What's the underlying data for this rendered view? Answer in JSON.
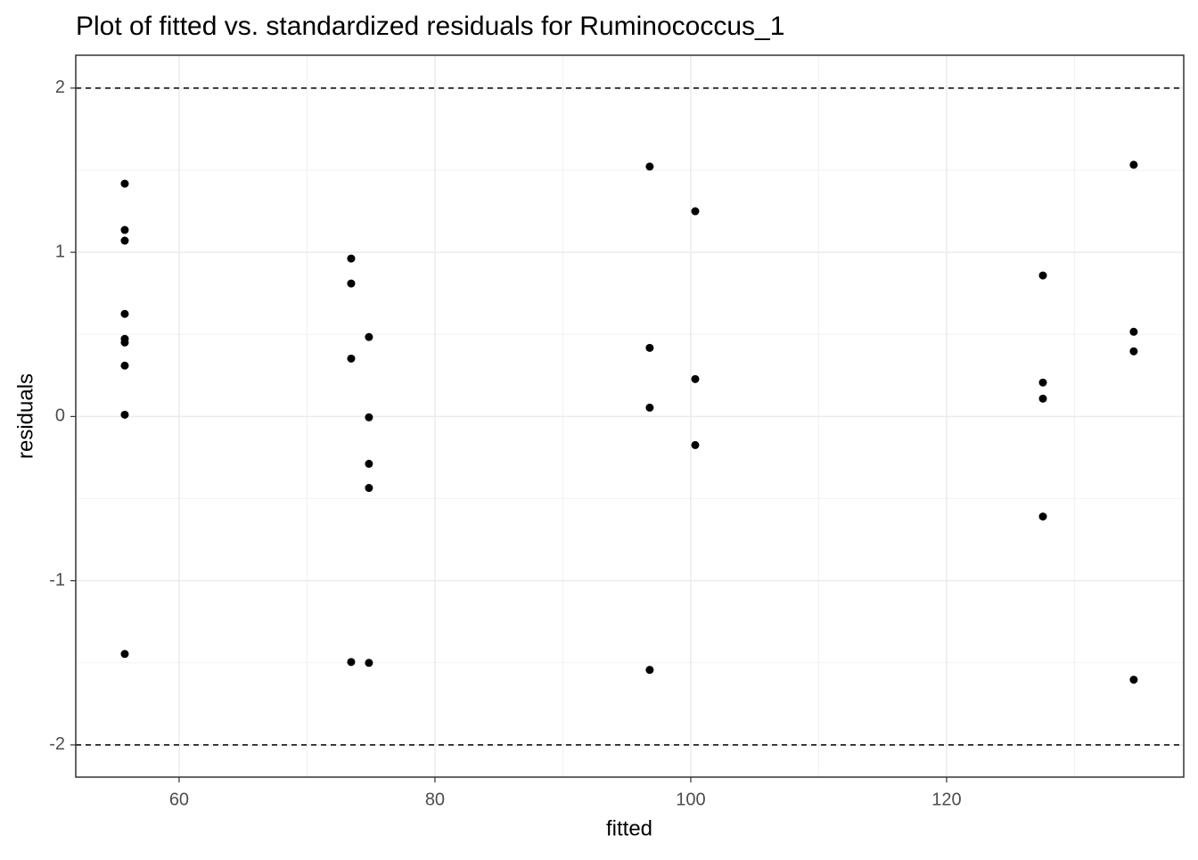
{
  "chart_data": {
    "type": "scatter",
    "title": "Plot of fitted vs. standardized residuals for Ruminococcus_1",
    "x_label": "fitted",
    "y_label": "residuals",
    "series": [
      {
        "color": "#000000",
        "x": [
          55.75,
          55.75,
          55.75,
          55.75,
          55.75,
          55.75,
          55.75,
          55.75,
          55.75,
          73.45,
          73.45,
          73.45,
          73.45,
          74.84,
          74.84,
          74.84,
          74.84,
          74.84,
          96.79,
          96.79,
          96.79,
          96.79,
          100.35,
          100.35,
          100.35,
          127.53,
          127.53,
          127.53,
          127.53,
          134.63,
          134.63,
          134.63,
          134.63
        ],
        "values": [
          1.418,
          1.136,
          1.071,
          0.625,
          0.473,
          0.451,
          0.31,
          0.011,
          -1.446,
          0.962,
          0.81,
          0.353,
          -1.495,
          0.484,
          -0.005,
          -0.288,
          -0.435,
          -1.5,
          1.522,
          0.418,
          0.054,
          -1.543,
          1.25,
          0.228,
          -0.174,
          0.859,
          0.207,
          0.109,
          -0.609,
          1.533,
          0.516,
          0.397,
          -1.603
        ]
      }
    ],
    "xlim": [
      51.92,
      138.54
    ],
    "xticks": [
      60,
      80,
      100,
      120
    ],
    "ylim": [
      -2.196,
      2.2
    ],
    "yticks": [
      -2,
      -1,
      0,
      1,
      2
    ],
    "hlines": [
      2,
      -2
    ],
    "grid": true
  }
}
